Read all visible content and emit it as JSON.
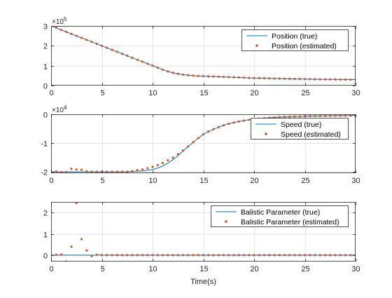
{
  "figure": {
    "xlabel": "Time(s)",
    "colors": {
      "true_line": "#0072BD",
      "estimated_marker": "#D95319",
      "grid": "#e6e6e6",
      "axes": "#262626"
    }
  },
  "chart_data": [
    {
      "type": "line",
      "title": "",
      "xlabel": "",
      "ylabel": "",
      "exponent_label": "×10^5",
      "xlim": [
        0,
        30
      ],
      "ylim": [
        0,
        3
      ],
      "xticks": [
        0,
        5,
        10,
        15,
        20,
        25,
        30
      ],
      "yticks": [
        0,
        1,
        2,
        3
      ],
      "grid": true,
      "legend_location": "top-right",
      "x": [
        0,
        0.5,
        1,
        1.5,
        2,
        2.5,
        3,
        3.5,
        4,
        4.5,
        5,
        5.5,
        6,
        6.5,
        7,
        7.5,
        8,
        8.5,
        9,
        9.5,
        10,
        10.5,
        11,
        11.5,
        12,
        12.5,
        13,
        13.5,
        14,
        14.5,
        15,
        15.5,
        16,
        16.5,
        17,
        17.5,
        18,
        18.5,
        19,
        19.5,
        20,
        20.5,
        21,
        21.5,
        22,
        22.5,
        23,
        23.5,
        24,
        24.5,
        25,
        25.5,
        26,
        26.5,
        27,
        27.5,
        28,
        28.5,
        29,
        29.5,
        30
      ],
      "series": [
        {
          "name": "Position (true)",
          "style": "line",
          "values": [
            3.0,
            2.9,
            2.8,
            2.7,
            2.6,
            2.5,
            2.4,
            2.3,
            2.2,
            2.1,
            2.0,
            1.9,
            1.8,
            1.7,
            1.6,
            1.5,
            1.4,
            1.3,
            1.2,
            1.1,
            1.0,
            0.9,
            0.8,
            0.71,
            0.64,
            0.59,
            0.55,
            0.52,
            0.5,
            0.48,
            0.47,
            0.46,
            0.455,
            0.445,
            0.435,
            0.425,
            0.415,
            0.405,
            0.395,
            0.385,
            0.375,
            0.37,
            0.365,
            0.36,
            0.355,
            0.35,
            0.345,
            0.34,
            0.335,
            0.33,
            0.325,
            0.32,
            0.318,
            0.315,
            0.312,
            0.31,
            0.308,
            0.306,
            0.304,
            0.302,
            0.3
          ]
        },
        {
          "name": "Position (estimated)",
          "style": "markers",
          "values": [
            3.05,
            2.92,
            2.8,
            2.7,
            2.6,
            2.5,
            2.4,
            2.3,
            2.2,
            2.1,
            2.0,
            1.9,
            1.8,
            1.7,
            1.6,
            1.5,
            1.4,
            1.3,
            1.2,
            1.1,
            1.0,
            0.9,
            0.8,
            0.71,
            0.64,
            0.59,
            0.55,
            0.52,
            0.5,
            0.48,
            0.47,
            0.46,
            0.455,
            0.445,
            0.435,
            0.425,
            0.415,
            0.405,
            0.395,
            0.385,
            0.375,
            0.37,
            0.365,
            0.36,
            0.355,
            0.35,
            0.345,
            0.34,
            0.335,
            0.33,
            0.325,
            0.32,
            0.318,
            0.315,
            0.312,
            0.31,
            0.308,
            0.306,
            0.304,
            0.302,
            0.3
          ]
        }
      ]
    },
    {
      "type": "line",
      "title": "",
      "xlabel": "",
      "ylabel": "",
      "exponent_label": "×10^4",
      "xlim": [
        0,
        30
      ],
      "ylim": [
        -2.05,
        0
      ],
      "xticks": [
        0,
        5,
        10,
        15,
        20,
        25,
        30
      ],
      "yticks": [
        -2,
        -1,
        0
      ],
      "grid": true,
      "legend_location": "top-right",
      "x": [
        0,
        0.5,
        1,
        1.5,
        2,
        2.5,
        3,
        3.5,
        4,
        4.5,
        5,
        5.5,
        6,
        6.5,
        7,
        7.5,
        8,
        8.5,
        9,
        9.5,
        10,
        10.5,
        11,
        11.5,
        12,
        12.5,
        13,
        13.5,
        14,
        14.5,
        15,
        15.5,
        16,
        16.5,
        17,
        17.5,
        18,
        18.5,
        19,
        19.5,
        20,
        20.5,
        21,
        21.5,
        22,
        22.5,
        23,
        23.5,
        24,
        24.5,
        25,
        25.5,
        26,
        26.5,
        27,
        27.5,
        28,
        28.5,
        29,
        29.5,
        30
      ],
      "series": [
        {
          "name": "Speed (true)",
          "style": "line",
          "values": [
            -2.0,
            -2.0,
            -2.0,
            -2.0,
            -2.0,
            -2.0,
            -2.0,
            -2.0,
            -2.0,
            -2.0,
            -2.0,
            -2.0,
            -2.0,
            -2.0,
            -2.0,
            -2.0,
            -1.99,
            -1.98,
            -1.97,
            -1.95,
            -1.92,
            -1.87,
            -1.8,
            -1.7,
            -1.58,
            -1.44,
            -1.28,
            -1.12,
            -0.97,
            -0.83,
            -0.7,
            -0.6,
            -0.52,
            -0.45,
            -0.38,
            -0.33,
            -0.29,
            -0.25,
            -0.22,
            -0.19,
            -0.17,
            -0.15,
            -0.135,
            -0.12,
            -0.11,
            -0.1,
            -0.09,
            -0.085,
            -0.08,
            -0.075,
            -0.07,
            -0.065,
            -0.062,
            -0.058,
            -0.055,
            -0.052,
            -0.05,
            -0.048,
            -0.046,
            -0.045,
            -0.043
          ]
        },
        {
          "name": "Speed (estimated)",
          "style": "markers",
          "values": [
            -2.0,
            -1.99,
            -2.02,
            -2.01,
            -1.9,
            -1.92,
            -1.93,
            -1.99,
            -2.0,
            -2.0,
            -2.0,
            -2.0,
            -2.0,
            -2.0,
            -2.0,
            -2.0,
            -1.98,
            -1.95,
            -1.92,
            -1.88,
            -1.83,
            -1.77,
            -1.7,
            -1.6,
            -1.51,
            -1.39,
            -1.26,
            -1.12,
            -0.97,
            -0.83,
            -0.7,
            -0.6,
            -0.52,
            -0.45,
            -0.38,
            -0.33,
            -0.29,
            -0.25,
            -0.22,
            -0.19,
            -0.17,
            -0.15,
            -0.135,
            -0.12,
            -0.11,
            -0.1,
            -0.09,
            -0.085,
            -0.08,
            -0.075,
            -0.07,
            -0.065,
            -0.062,
            -0.058,
            -0.055,
            -0.052,
            -0.05,
            -0.048,
            -0.046,
            -0.045,
            -0.043
          ]
        }
      ]
    },
    {
      "type": "line",
      "title": "",
      "xlabel": "Time(s)",
      "ylabel": "",
      "exponent_label": "",
      "xlim": [
        0,
        30
      ],
      "ylim": [
        -0.3,
        2.5
      ],
      "xticks": [
        0,
        5,
        10,
        15,
        20,
        25,
        30
      ],
      "yticks": [
        0,
        1,
        2
      ],
      "grid": true,
      "legend_location": "top-right",
      "x": [
        0,
        0.5,
        1,
        1.5,
        2,
        2.5,
        3,
        3.5,
        4,
        4.5,
        5,
        5.5,
        6,
        6.5,
        7,
        7.5,
        8,
        8.5,
        9,
        9.5,
        10,
        10.5,
        11,
        11.5,
        12,
        12.5,
        13,
        13.5,
        14,
        14.5,
        15,
        15.5,
        16,
        16.5,
        17,
        17.5,
        18,
        18.5,
        19,
        19.5,
        20,
        20.5,
        21,
        21.5,
        22,
        22.5,
        23,
        23.5,
        24,
        24.5,
        25,
        25.5,
        26,
        26.5,
        27,
        27.5,
        28,
        28.5,
        29,
        29.5,
        30
      ],
      "series": [
        {
          "name": "Balistic Parameter (true)",
          "style": "line",
          "values": [
            0,
            0,
            0,
            0,
            0,
            0,
            0,
            0,
            0,
            0,
            0,
            0,
            0,
            0,
            0,
            0,
            0,
            0,
            0,
            0,
            0,
            0,
            0,
            0,
            0,
            0,
            0,
            0,
            0,
            0,
            0,
            0,
            0,
            0,
            0,
            0,
            0,
            0,
            0,
            0,
            0,
            0,
            0,
            0,
            0,
            0,
            0,
            0,
            0,
            0,
            0,
            0,
            0,
            0,
            0,
            0,
            0,
            0,
            0,
            0,
            0
          ]
        },
        {
          "name": "Balistic Parameter (estimated)",
          "style": "markers",
          "values": [
            0,
            0.02,
            0.03,
            -0.3,
            0.4,
            2.45,
            0.75,
            0.22,
            -0.05,
            0.02,
            0,
            0,
            0,
            0,
            0,
            0,
            0,
            0,
            0,
            0,
            0,
            0,
            0,
            0,
            0,
            0,
            0,
            0,
            0,
            0,
            0,
            0,
            0,
            0,
            0,
            0,
            0,
            0,
            0,
            0,
            0,
            0,
            0,
            0,
            0,
            0,
            0,
            0,
            0,
            0,
            0,
            0,
            0,
            0,
            0,
            0,
            0,
            0,
            0,
            0,
            0
          ]
        }
      ]
    }
  ]
}
